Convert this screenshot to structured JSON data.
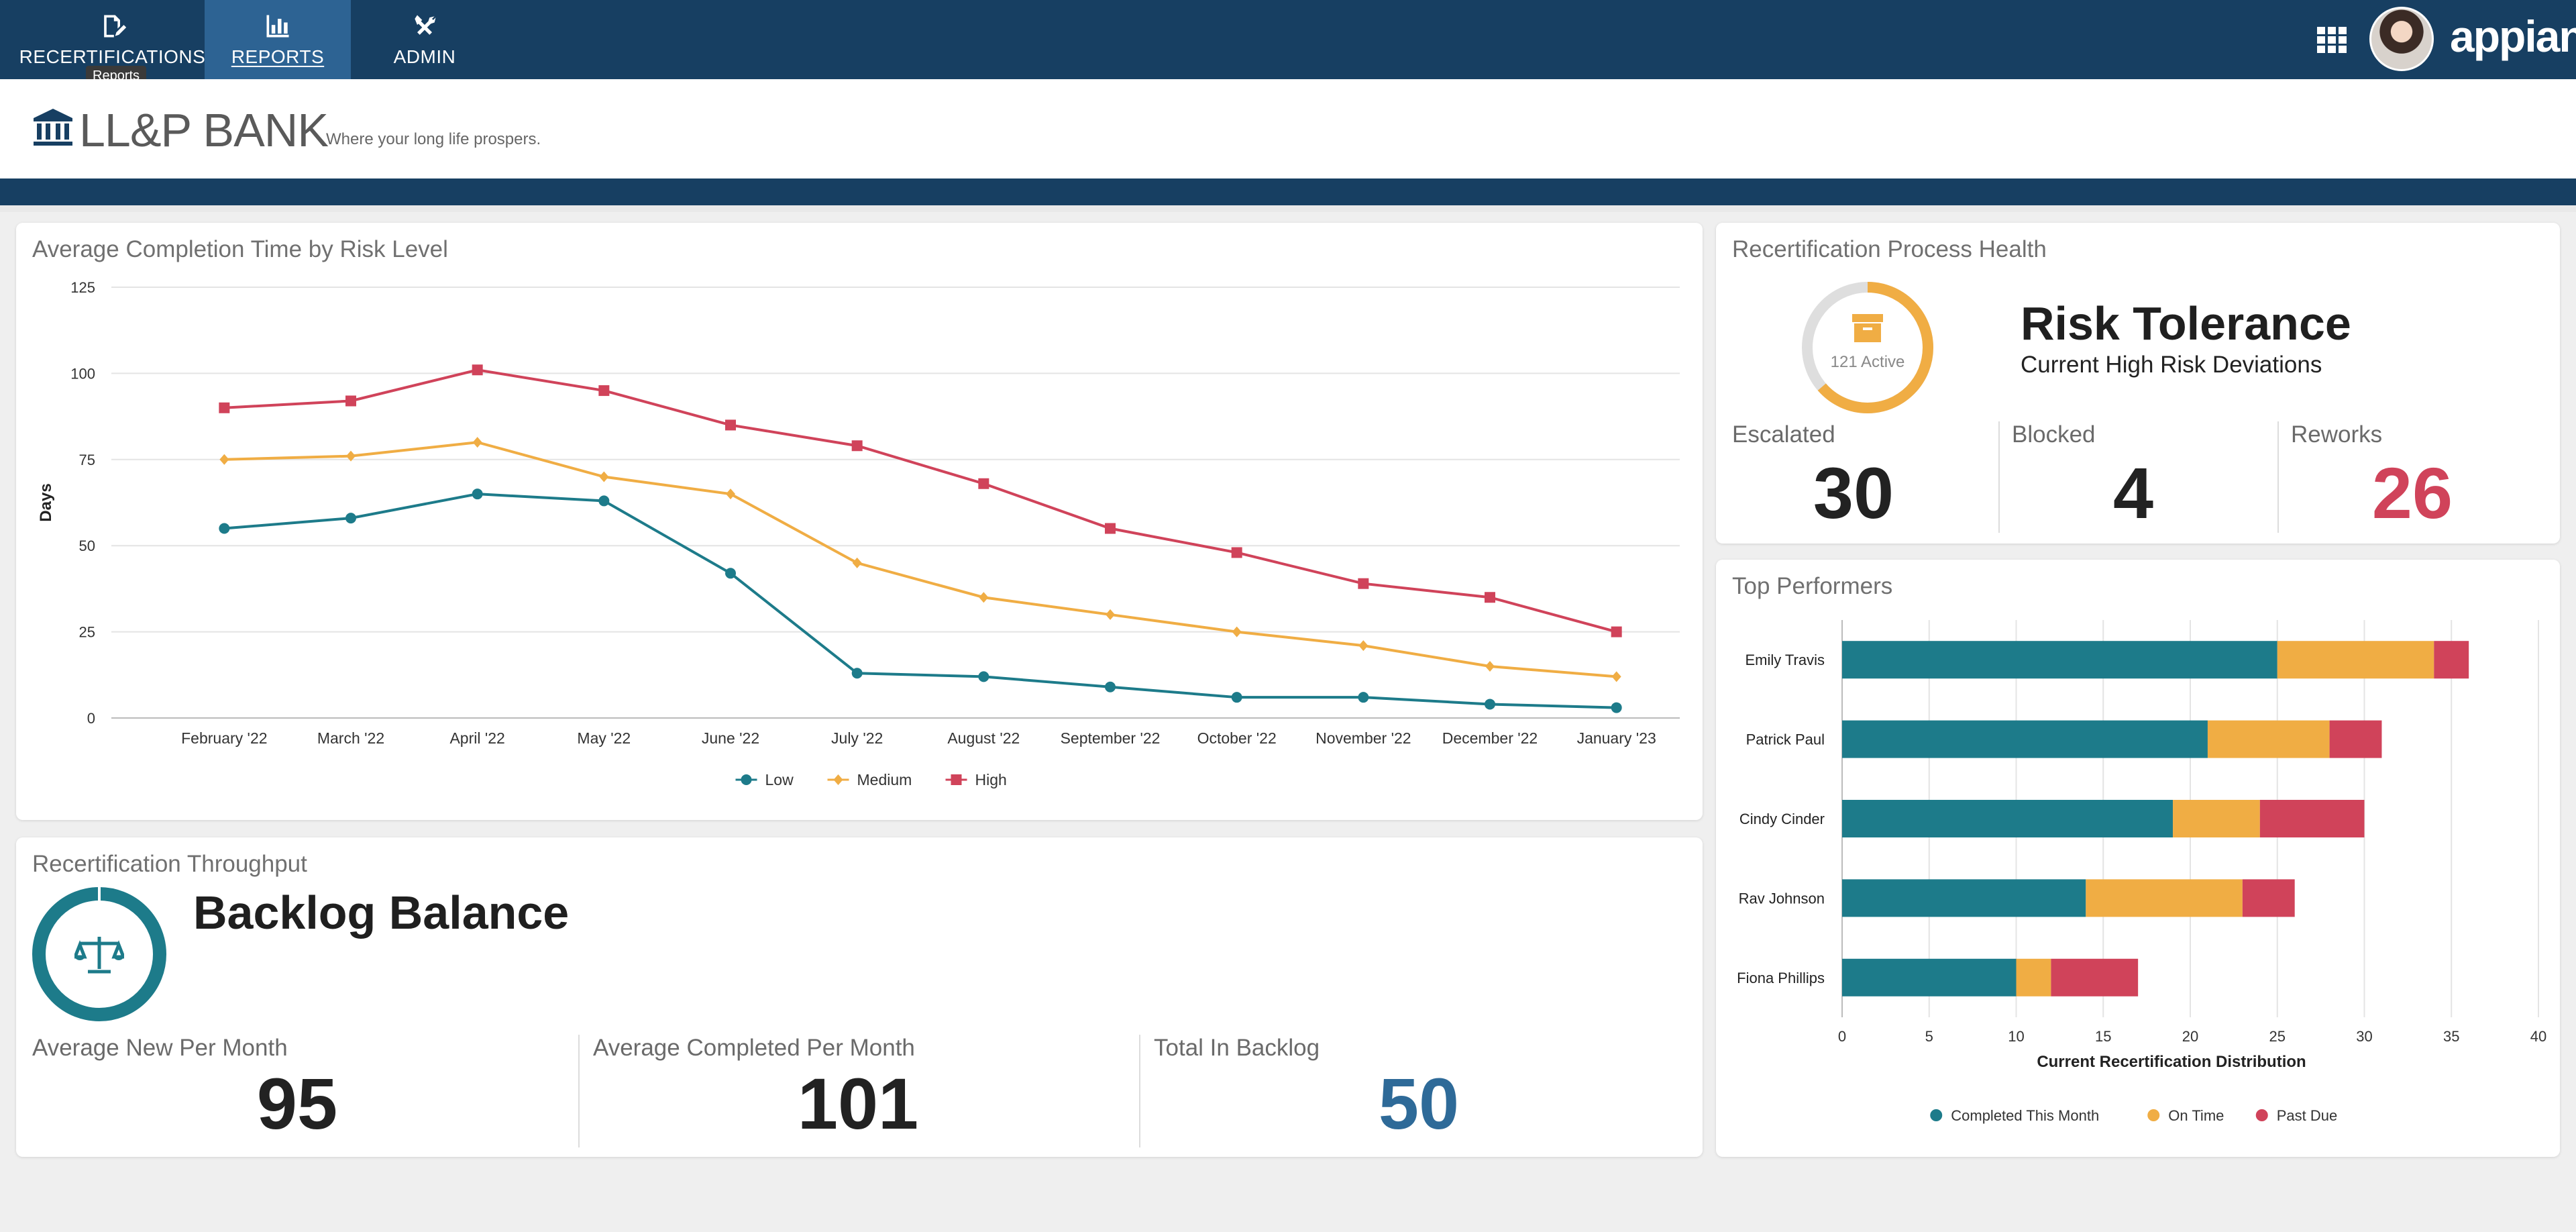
{
  "nav": {
    "tabs": [
      {
        "label": "RECERTIFICATIONS",
        "icon": "edit-document-icon"
      },
      {
        "label": "REPORTS",
        "icon": "bar-chart-icon"
      },
      {
        "label": "ADMIN",
        "icon": "tools-icon"
      }
    ],
    "tooltip": "Reports",
    "logo": "appian"
  },
  "header": {
    "bank_name": "LL&P BANK",
    "tagline": "Where your long life prospers."
  },
  "completion_card": {
    "title": "Average Completion Time by Risk Level"
  },
  "health_card": {
    "title": "Recertification Process Health",
    "donut_label": "121 Active",
    "heading": "Risk Tolerance",
    "subheading": "Current High Risk Deviations",
    "stats": [
      {
        "label": "Escalated",
        "value": "30",
        "color": "#222222"
      },
      {
        "label": "Blocked",
        "value": "4",
        "color": "#222222"
      },
      {
        "label": "Reworks",
        "value": "26",
        "color": "#d0435a"
      }
    ]
  },
  "throughput_card": {
    "title": "Recertification Throughput",
    "heading": "Backlog Balance",
    "stats": [
      {
        "label": "Average New Per Month",
        "value": "95",
        "color": "#222222"
      },
      {
        "label": "Average Completed Per Month",
        "value": "101",
        "color": "#222222"
      },
      {
        "label": "Total In Backlog",
        "value": "50",
        "color": "#2e6a98"
      }
    ]
  },
  "performers_card": {
    "title": "Top Performers"
  },
  "chart_data": [
    {
      "type": "line",
      "title": "Average Completion Time by Risk Level",
      "xlabel": "",
      "ylabel": "Days",
      "categories": [
        "February '22",
        "March '22",
        "April '22",
        "May '22",
        "June '22",
        "July '22",
        "August '22",
        "September '22",
        "October '22",
        "November '22",
        "December '22",
        "January '23"
      ],
      "ylim": [
        0,
        125
      ],
      "yticks": [
        0,
        25,
        50,
        75,
        100,
        125
      ],
      "grid": true,
      "legend": "bottom",
      "series": [
        {
          "name": "Low",
          "color": "#1d7b8a",
          "marker": "circle",
          "values": [
            55,
            58,
            65,
            63,
            42,
            13,
            12,
            9,
            6,
            6,
            4,
            3
          ]
        },
        {
          "name": "Medium",
          "color": "#f0ad44",
          "marker": "diamond",
          "values": [
            75,
            76,
            80,
            70,
            65,
            45,
            35,
            30,
            25,
            21,
            15,
            12
          ]
        },
        {
          "name": "High",
          "color": "#d0435a",
          "marker": "square",
          "values": [
            90,
            92,
            101,
            95,
            85,
            79,
            68,
            55,
            48,
            39,
            35,
            25
          ]
        }
      ]
    },
    {
      "type": "bar",
      "orientation": "horizontal",
      "stacked": true,
      "title": "",
      "xlabel": "Current Recertification Distribution",
      "ylabel": "",
      "categories": [
        "Emily Travis",
        "Patrick Paul",
        "Cindy Cinder",
        "Rav Johnson",
        "Fiona Phillips"
      ],
      "xlim": [
        0,
        40
      ],
      "xticks": [
        0,
        5,
        10,
        15,
        20,
        25,
        30,
        35,
        40
      ],
      "grid": true,
      "legend": "bottom",
      "series": [
        {
          "name": "Completed This Month",
          "color": "#1d7b8a",
          "values": [
            25,
            21,
            19,
            14,
            10
          ]
        },
        {
          "name": "On Time",
          "color": "#f0ad44",
          "values": [
            9,
            7,
            5,
            9,
            2
          ]
        },
        {
          "name": "Past Due",
          "color": "#d0435a",
          "values": [
            2,
            3,
            6,
            3,
            5
          ]
        }
      ]
    }
  ]
}
